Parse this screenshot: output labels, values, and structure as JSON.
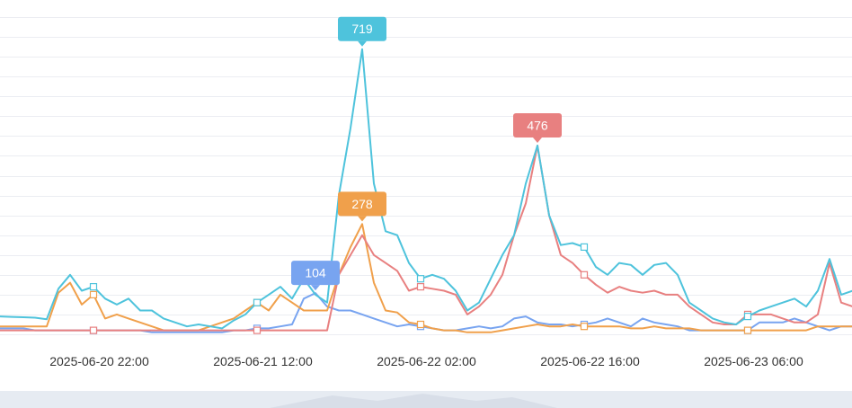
{
  "chart_data": {
    "type": "line",
    "x_tick_labels": [
      "2025-06-20 22:00",
      "2025-06-21 12:00",
      "2025-06-22 02:00",
      "2025-06-22 16:00",
      "2025-06-23 06:00"
    ],
    "ylim": [
      0,
      800
    ],
    "grid": true,
    "series": [
      {
        "color": "#4ec3dc",
        "peak": {
          "value": 719,
          "label": "719"
        },
        "values": [
          45,
          44,
          43,
          42,
          38,
          115,
          150,
          110,
          120,
          90,
          75,
          90,
          60,
          60,
          40,
          30,
          20,
          25,
          20,
          15,
          35,
          50,
          80,
          100,
          120,
          90,
          140,
          100,
          80,
          350,
          520,
          719,
          380,
          260,
          250,
          180,
          140,
          150,
          140,
          110,
          60,
          80,
          140,
          200,
          250,
          380,
          476,
          300,
          225,
          230,
          220,
          170,
          150,
          180,
          175,
          150,
          175,
          180,
          150,
          80,
          60,
          40,
          30,
          25,
          45,
          60,
          70,
          80,
          90,
          70,
          110,
          190,
          100,
          110,
          120
        ]
      },
      {
        "color": "#e88080",
        "peak": {
          "value": 476,
          "label": "476"
        },
        "values": [
          10,
          10,
          10,
          10,
          10,
          10,
          10,
          10,
          10,
          10,
          10,
          10,
          10,
          10,
          10,
          10,
          10,
          10,
          10,
          10,
          10,
          10,
          10,
          10,
          10,
          10,
          10,
          10,
          10,
          150,
          200,
          250,
          200,
          180,
          160,
          110,
          120,
          115,
          110,
          100,
          50,
          70,
          100,
          150,
          250,
          330,
          476,
          300,
          200,
          180,
          150,
          125,
          105,
          120,
          110,
          105,
          110,
          100,
          100,
          70,
          50,
          30,
          25,
          25,
          50,
          50,
          50,
          40,
          30,
          30,
          50,
          180,
          80,
          70,
          60
        ]
      },
      {
        "color": "#f0a04b",
        "peak": {
          "value": 278,
          "label": "278"
        },
        "values": [
          20,
          20,
          20,
          20,
          20,
          105,
          130,
          75,
          100,
          40,
          50,
          40,
          30,
          20,
          10,
          10,
          10,
          10,
          20,
          30,
          40,
          60,
          80,
          60,
          100,
          80,
          60,
          60,
          60,
          150,
          220,
          278,
          130,
          60,
          55,
          30,
          25,
          15,
          10,
          10,
          5,
          5,
          5,
          10,
          15,
          20,
          25,
          20,
          20,
          25,
          20,
          20,
          20,
          20,
          15,
          15,
          20,
          15,
          15,
          15,
          10,
          10,
          10,
          10,
          10,
          10,
          10,
          10,
          10,
          10,
          20,
          20,
          20,
          20,
          20
        ]
      },
      {
        "color": "#78a4f0",
        "peak": {
          "value": 104,
          "label": "104"
        },
        "values": [
          15,
          15,
          15,
          10,
          10,
          10,
          10,
          10,
          10,
          10,
          10,
          10,
          10,
          5,
          5,
          5,
          5,
          5,
          5,
          5,
          10,
          10,
          15,
          15,
          20,
          25,
          90,
          104,
          70,
          60,
          60,
          50,
          40,
          30,
          20,
          25,
          20,
          15,
          10,
          10,
          15,
          20,
          15,
          20,
          40,
          45,
          30,
          25,
          25,
          20,
          25,
          30,
          40,
          30,
          20,
          40,
          30,
          25,
          20,
          10,
          10,
          10,
          10,
          10,
          10,
          30,
          30,
          30,
          40,
          30,
          20,
          10,
          20,
          20,
          20
        ]
      }
    ]
  }
}
